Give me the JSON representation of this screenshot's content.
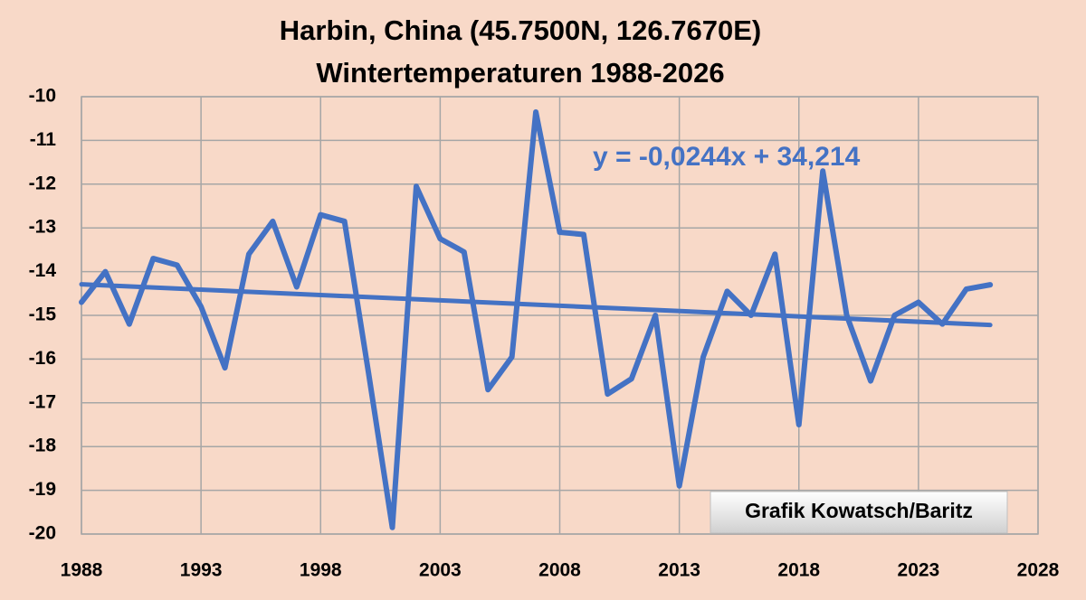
{
  "chart_data": {
    "type": "line",
    "title": "Harbin, China (45.7500N, 126.7670E)",
    "subtitle": "Wintertemperaturen 1988-2026",
    "x": [
      1988,
      1989,
      1990,
      1991,
      1992,
      1993,
      1994,
      1995,
      1996,
      1997,
      1998,
      1999,
      2000,
      2001,
      2002,
      2003,
      2004,
      2005,
      2006,
      2007,
      2008,
      2009,
      2010,
      2011,
      2012,
      2013,
      2014,
      2015,
      2016,
      2017,
      2018,
      2019,
      2020,
      2021,
      2022,
      2023,
      2024,
      2025,
      2026
    ],
    "values": [
      -14.7,
      -14.0,
      -15.2,
      -13.7,
      -13.85,
      -14.8,
      -16.2,
      -13.6,
      -12.85,
      -14.35,
      -12.7,
      -12.85,
      -16.3,
      -19.85,
      -12.05,
      -13.25,
      -13.55,
      -16.7,
      -15.95,
      -10.35,
      -13.1,
      -13.15,
      -16.8,
      -16.45,
      -15.0,
      -18.9,
      -15.95,
      -14.45,
      -15.0,
      -13.6,
      -17.5,
      -11.7,
      -15.0,
      -16.5,
      -15.0,
      -14.7,
      -15.2,
      -14.4,
      -14.3
    ],
    "color": "#4472c4",
    "trendline": {
      "x": [
        1988,
        2026
      ],
      "values": [
        -14.29,
        -15.22
      ]
    },
    "annotations": [
      "y = -0,0244x + 34,214",
      "Grafik Kowatsch/Baritz"
    ],
    "xlim": [
      1988,
      2028
    ],
    "xticks": [
      1988,
      1993,
      1998,
      2003,
      2008,
      2013,
      2018,
      2023,
      2028
    ],
    "ylim": [
      -20,
      -10
    ],
    "yticks": [
      -10,
      -11,
      -12,
      -13,
      -14,
      -15,
      -16,
      -17,
      -18,
      -19,
      -20
    ],
    "grid": true
  }
}
